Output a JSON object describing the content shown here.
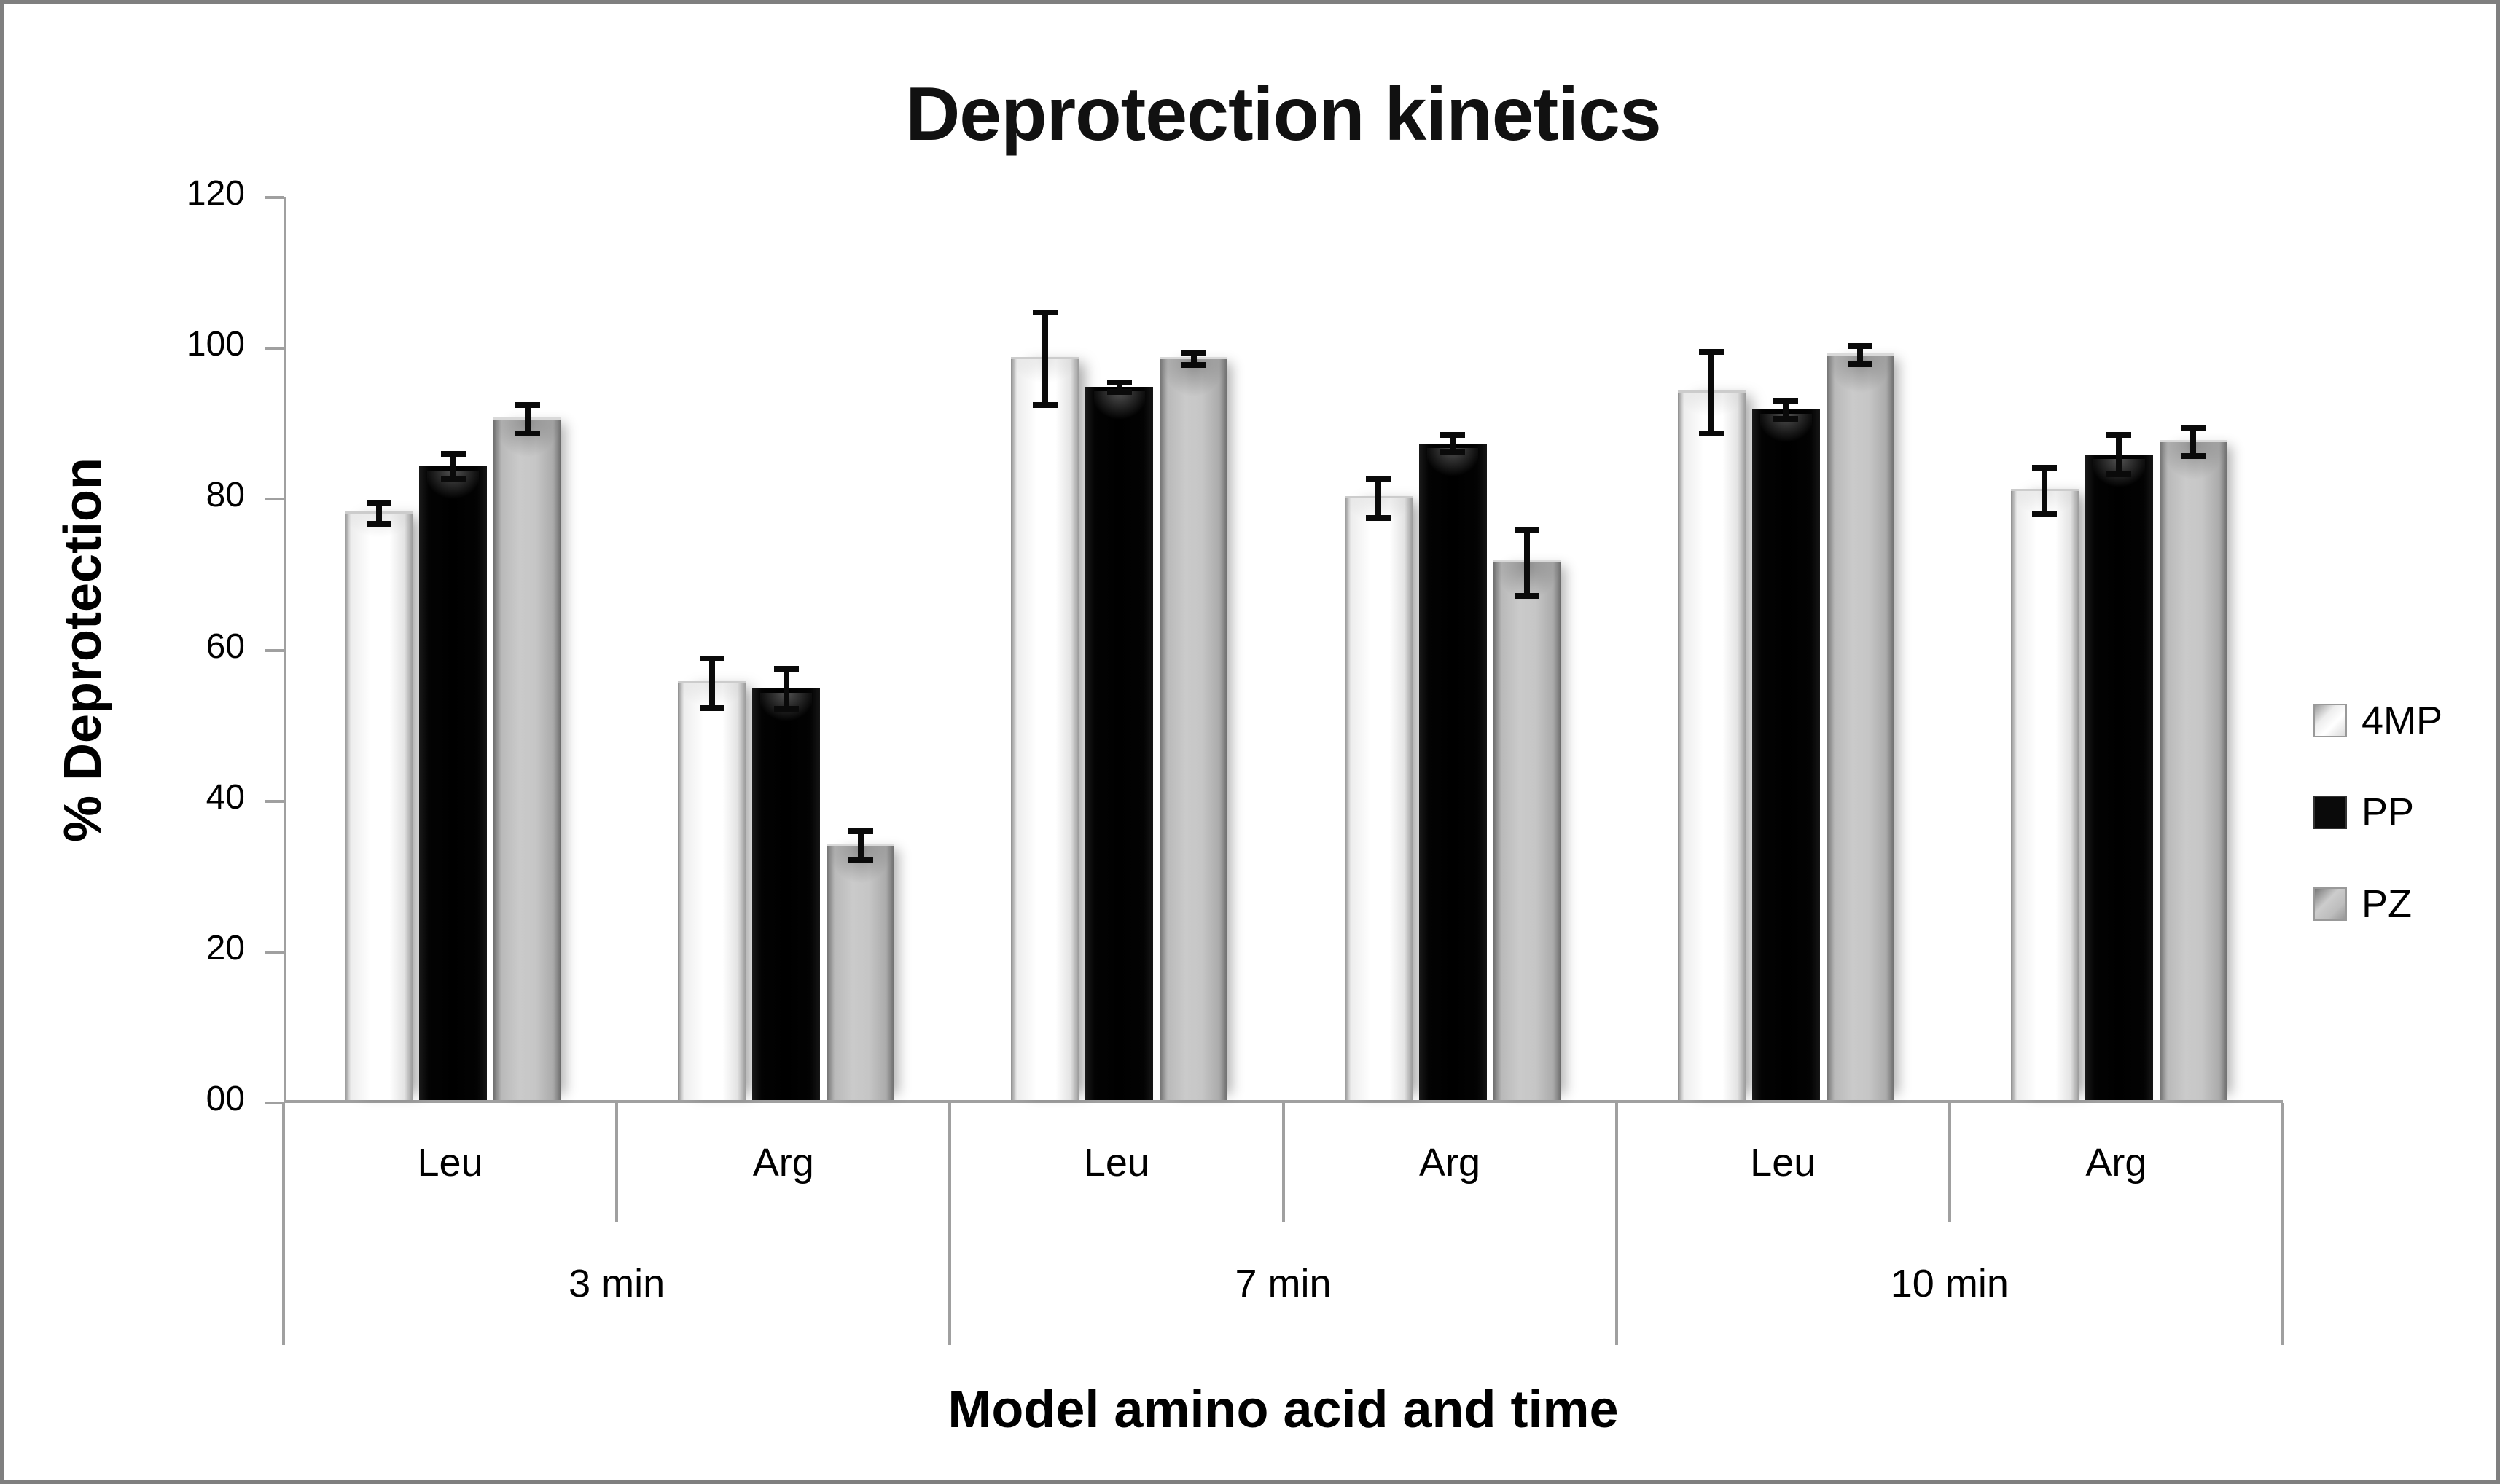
{
  "figure": {
    "background": "#ffffff",
    "frame_color": "#7f7f7f"
  },
  "chart_data": {
    "type": "bar",
    "title": "Deprotection kinetics",
    "ylabel": "% Deprotection",
    "xlabel": "Model amino acid and time",
    "ylim": [
      0,
      120
    ],
    "ytick_step": 20,
    "ytick_labels_bottom_to_top": [
      "00",
      "20",
      "40",
      "60",
      "80",
      "100",
      "120"
    ],
    "grid": "off",
    "legend_position": "right",
    "error_bars": true,
    "axis_color": "#a0a0a0",
    "text_color": "#000000",
    "series": [
      {
        "name": "4MP",
        "color": "#ffffff"
      },
      {
        "name": "PP",
        "color": "#0a0a0a"
      },
      {
        "name": "PZ",
        "color": "#bfbfbf"
      }
    ],
    "groups": [
      {
        "time": "3 min",
        "categories": [
          {
            "label": "Leu",
            "values": [
              78,
              84,
              90.5
            ],
            "errors": [
              1.7,
              2.0,
              2.3
            ]
          },
          {
            "label": "Arg",
            "values": [
              55.5,
              54.5,
              34
            ],
            "errors": [
              3.7,
              3.0,
              2.3
            ]
          }
        ]
      },
      {
        "time": "7 min",
        "categories": [
          {
            "label": "Leu",
            "values": [
              98.5,
              94.5,
              98.5
            ],
            "errors": [
              6.5,
              1.0,
              1.2
            ]
          },
          {
            "label": "Arg",
            "values": [
              80,
              87,
              71.5
            ],
            "errors": [
              3.0,
              1.5,
              4.8
            ]
          }
        ]
      },
      {
        "time": "10 min",
        "categories": [
          {
            "label": "Leu",
            "values": [
              94,
              91.5,
              99
            ],
            "errors": [
              5.8,
              1.6,
              1.6
            ]
          },
          {
            "label": "Arg",
            "values": [
              81,
              85.5,
              87.5
            ],
            "errors": [
              3.5,
              3.0,
              2.3
            ]
          }
        ]
      }
    ]
  }
}
